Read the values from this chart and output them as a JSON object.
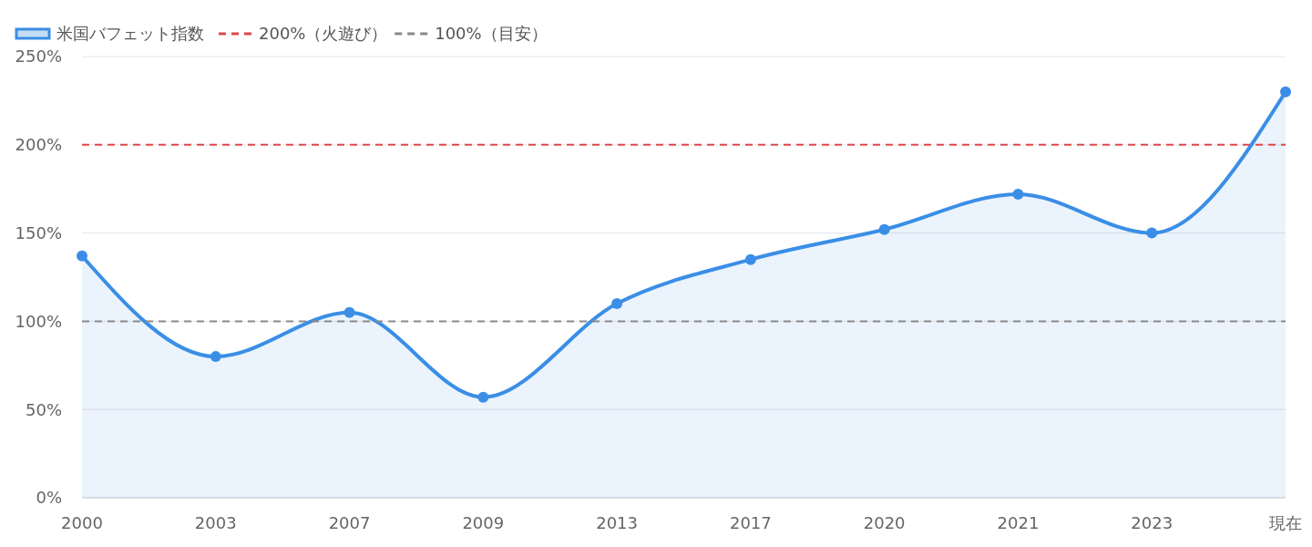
{
  "chart_data": {
    "type": "area",
    "categories": [
      "2000",
      "2003",
      "2007",
      "2009",
      "2013",
      "2017",
      "2020",
      "2021",
      "2023",
      "現在"
    ],
    "series": [
      {
        "name": "米国バフェット指数",
        "color": "#3a8ee6",
        "values": [
          137,
          80,
          105,
          57,
          110,
          135,
          152,
          172,
          150,
          230
        ]
      }
    ],
    "ylim": [
      0,
      250
    ],
    "yticks": [
      {
        "value": 0,
        "label": "0%"
      },
      {
        "value": 50,
        "label": "50%"
      },
      {
        "value": 100,
        "label": "100%"
      },
      {
        "value": 150,
        "label": "150%"
      },
      {
        "value": 200,
        "label": "200%"
      },
      {
        "value": 250,
        "label": "250%"
      }
    ],
    "ref_lines": [
      {
        "axis": "y",
        "value": 200,
        "label": "200%（火遊び）",
        "color": "#e04848",
        "line_style": "dashed"
      },
      {
        "axis": "y",
        "value": 100,
        "label": "100%（目安）",
        "color": "#8a8a8a",
        "line_style": "dashed"
      }
    ],
    "grid": "y",
    "legend": "top left",
    "marker": "circle",
    "line_style": "solid"
  }
}
